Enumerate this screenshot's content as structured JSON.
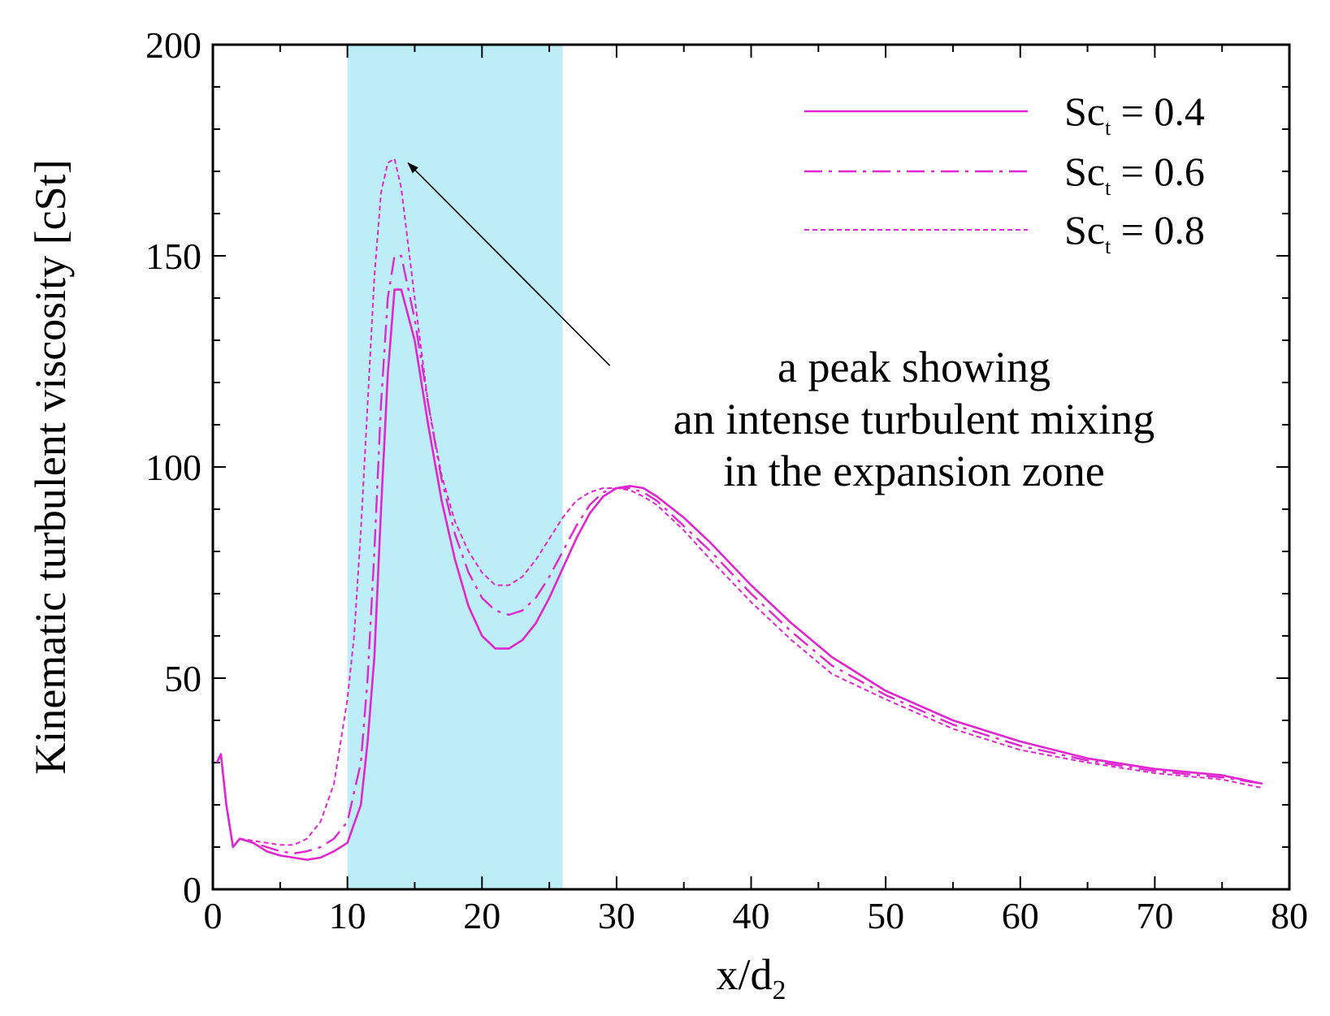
{
  "chart_data": {
    "type": "line",
    "title": "",
    "xlabel": {
      "main": "x/d",
      "sub": "2"
    },
    "ylabel": "Kinematic turbulent viscosity [cSt]",
    "xlim": [
      0,
      80
    ],
    "ylim": [
      0,
      200
    ],
    "xticks": [
      0,
      10,
      20,
      30,
      40,
      50,
      60,
      70,
      80
    ],
    "yticks": [
      0,
      50,
      100,
      150,
      200
    ],
    "grid": false,
    "legend_position": "top-right",
    "shaded_region": {
      "x_start": 10,
      "x_end": 26,
      "color": "#bdeef8"
    },
    "line_color": "#e026d0",
    "series": [
      {
        "name": "Sc = 0.4",
        "label_main": "Sc",
        "label_sub": "t",
        "label_value": " = 0.4",
        "dash": "solid",
        "x": [
          0.3,
          0.6,
          1.0,
          1.5,
          2.0,
          3,
          4,
          5,
          6,
          7,
          8,
          9,
          10,
          11,
          11.5,
          12,
          12.5,
          13,
          13.5,
          14,
          15,
          16,
          17,
          18,
          19,
          20,
          21,
          22,
          23,
          24,
          25,
          26,
          27,
          28,
          29,
          30,
          31,
          32,
          33,
          35,
          37,
          40,
          43,
          46,
          50,
          55,
          60,
          65,
          70,
          75,
          78
        ],
        "y": [
          30,
          32,
          20,
          10,
          12,
          11,
          9,
          8,
          7.5,
          7,
          7.5,
          9,
          11,
          20,
          35,
          55,
          90,
          122,
          142,
          142,
          130,
          110,
          92,
          78,
          67,
          60,
          57,
          57,
          59,
          63,
          69,
          76,
          83,
          89,
          93,
          95,
          95.5,
          95,
          93,
          88,
          82,
          72,
          63,
          55,
          47,
          40,
          35,
          31,
          28.5,
          27,
          25
        ]
      },
      {
        "name": "Sc = 0.6",
        "label_main": "Sc",
        "label_sub": "t",
        "label_value": " = 0.6",
        "dash": "dashdot",
        "x": [
          0.3,
          0.6,
          1.0,
          1.5,
          2.0,
          3,
          4,
          5,
          6,
          7,
          8,
          9,
          10,
          11,
          11.5,
          12,
          12.5,
          13,
          13.5,
          14,
          15,
          16,
          17,
          18,
          19,
          20,
          21,
          22,
          23,
          24,
          25,
          26,
          27,
          28,
          29,
          30,
          31,
          32,
          33,
          35,
          37,
          40,
          43,
          46,
          50,
          55,
          60,
          65,
          70,
          75,
          78
        ],
        "y": [
          30,
          32,
          20,
          10,
          12,
          11,
          10,
          9,
          8.5,
          9,
          10,
          12,
          16,
          30,
          50,
          80,
          115,
          140,
          150,
          150,
          135,
          115,
          97,
          84,
          75,
          69,
          66,
          65,
          66,
          69,
          74,
          80,
          86,
          91,
          94,
          95,
          95,
          94,
          92,
          86,
          80,
          70,
          61,
          53,
          46,
          39,
          34,
          30.5,
          28,
          26.5,
          25
        ]
      },
      {
        "name": "Sc = 0.8",
        "label_main": "Sc",
        "label_sub": "t",
        "label_value": " = 0.8",
        "dash": "dotted",
        "x": [
          0.3,
          0.6,
          1.0,
          1.5,
          2.0,
          3,
          4,
          5,
          6,
          7,
          8,
          9,
          10,
          10.5,
          11,
          11.5,
          12,
          12.5,
          13,
          13.5,
          14,
          15,
          16,
          17,
          18,
          19,
          20,
          21,
          22,
          23,
          24,
          25,
          26,
          27,
          28,
          29,
          30,
          31,
          32,
          33,
          35,
          37,
          40,
          43,
          46,
          50,
          55,
          60,
          65,
          70,
          75,
          78
        ],
        "y": [
          30,
          32,
          20,
          10,
          12,
          11.5,
          11,
          10.5,
          10.5,
          12,
          16,
          25,
          45,
          60,
          85,
          115,
          145,
          165,
          172,
          173,
          166,
          140,
          115,
          98,
          87,
          80,
          75,
          72,
          72,
          74,
          78,
          83,
          88,
          92,
          94,
          95,
          95,
          94.5,
          93,
          91,
          85,
          78,
          68,
          59,
          51,
          45,
          38,
          33,
          30,
          27.5,
          26,
          24
        ]
      }
    ],
    "annotations": [
      {
        "lines": [
          "a peak showing",
          "an intense turbulent mixing",
          "in the expansion zone"
        ],
        "arrow_from": [
          29.5,
          124
        ],
        "arrow_to": [
          14.5,
          172
        ]
      }
    ]
  }
}
